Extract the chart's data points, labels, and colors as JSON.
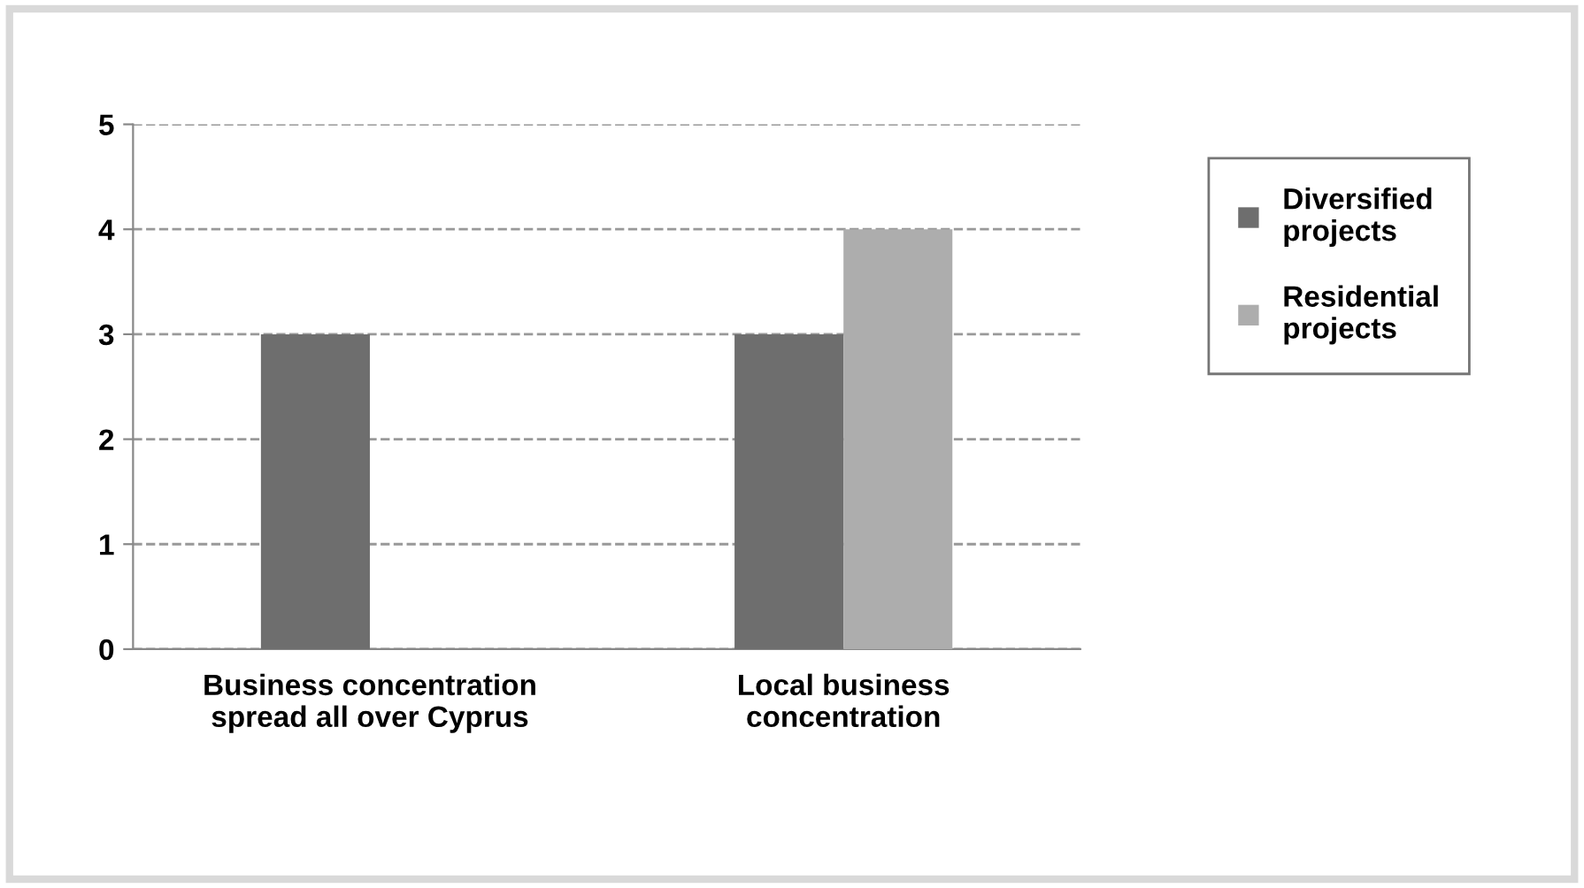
{
  "chart_data": {
    "type": "bar",
    "categories": [
      "Business concentration\nspread all over Cyprus",
      "Local business\nconcentration"
    ],
    "series": [
      {
        "name": "Diversified\nprojects",
        "color": "#6e6e6e",
        "values": [
          3,
          3
        ]
      },
      {
        "name": "Residential\nprojects",
        "color": "#adadad",
        "values": [
          null,
          4
        ]
      }
    ],
    "ylim": [
      0,
      5
    ],
    "yticks": [
      0,
      1,
      2,
      3,
      4,
      5
    ],
    "grid": "y",
    "legend": "right"
  }
}
